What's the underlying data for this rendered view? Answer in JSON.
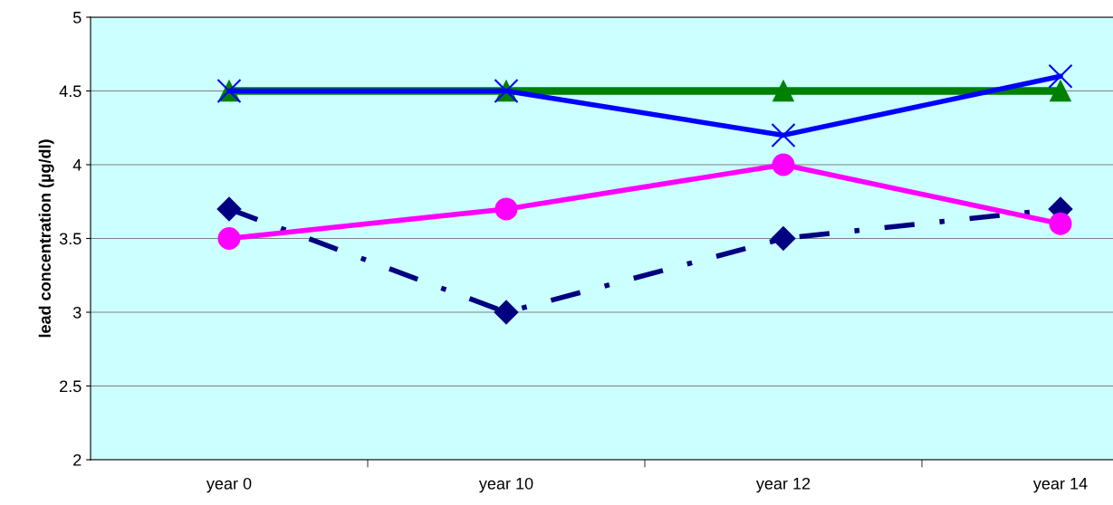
{
  "chart_data": {
    "type": "line",
    "ylabel": "lead concentration (µg/dl)",
    "categories": [
      "year 0",
      "year 10",
      "year 12",
      "year 14"
    ],
    "ylim": [
      2,
      5
    ],
    "yticks": [
      2,
      2.5,
      3,
      3.5,
      4,
      4.5,
      5
    ],
    "grid": "y",
    "series": [
      {
        "color": "#000080",
        "values": [
          3.7,
          3.0,
          3.5,
          3.7
        ],
        "marker": "diamond",
        "line_style": "dashdot"
      },
      {
        "color": "#ff00ff",
        "values": [
          3.5,
          3.7,
          4.0,
          3.6
        ],
        "marker": "circle",
        "line_style": "solid"
      },
      {
        "color": "#008000",
        "values": [
          4.5,
          4.5,
          4.5,
          4.5
        ],
        "marker": "triangle",
        "line_style": "solid"
      },
      {
        "color": "#0000ff",
        "values": [
          4.5,
          4.5,
          4.2,
          4.6
        ],
        "marker": "cross",
        "line_style": "solid"
      }
    ]
  }
}
